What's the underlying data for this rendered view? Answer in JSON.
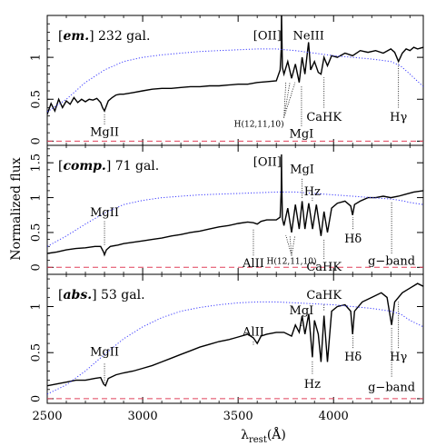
{
  "chart_data": {
    "type": "line",
    "layout": "three vertically stacked panels sharing the x axis",
    "xlabel_main": "λ",
    "xlabel_sub": "rest",
    "xlabel_unit": "(Å)",
    "ylabel": "Normalized flux",
    "xlim": [
      2500,
      4470
    ],
    "x_ticks": [
      2500,
      3000,
      3500,
      4000
    ],
    "colors": {
      "spectrum": "#000000",
      "template": "#3a3aff",
      "zero_line": "#e0405a"
    },
    "line_styles": {
      "template": "dotted",
      "zero_line": "dashed"
    },
    "panels": [
      {
        "id": "em",
        "label_type": "em.",
        "label_count": "232 gal.",
        "ylim": [
          -0.05,
          1.5
        ],
        "y_ticks": [
          0,
          0.5,
          1
        ],
        "y_tick_labels": [
          "0",
          "0.5",
          "1"
        ],
        "series": [
          {
            "role": "spectrum",
            "x": [
              2500,
              2520,
              2540,
              2560,
              2580,
              2600,
              2620,
              2640,
              2660,
              2680,
              2700,
              2720,
              2740,
              2760,
              2780,
              2790,
              2800,
              2810,
              2820,
              2840,
              2860,
              2880,
              2900,
              2950,
              3000,
              3050,
              3100,
              3150,
              3200,
              3250,
              3300,
              3350,
              3400,
              3450,
              3500,
              3550,
              3600,
              3650,
              3700,
              3720,
              3726,
              3727,
              3728,
              3732,
              3740,
              3760,
              3780,
              3800,
              3820,
              3835,
              3850,
              3869,
              3880,
              3900,
              3920,
              3934,
              3950,
              3968,
              3990,
              4020,
              4060,
              4100,
              4140,
              4180,
              4220,
              4260,
              4300,
              4320,
              4340,
              4360,
              4380,
              4400,
              4420,
              4440,
              4470
            ],
            "y": [
              0.32,
              0.45,
              0.36,
              0.5,
              0.4,
              0.48,
              0.44,
              0.52,
              0.46,
              0.5,
              0.47,
              0.5,
              0.49,
              0.51,
              0.46,
              0.4,
              0.36,
              0.42,
              0.48,
              0.52,
              0.55,
              0.56,
              0.56,
              0.58,
              0.6,
              0.62,
              0.63,
              0.63,
              0.64,
              0.65,
              0.65,
              0.66,
              0.66,
              0.67,
              0.68,
              0.68,
              0.7,
              0.71,
              0.72,
              0.85,
              1.1,
              1.58,
              1.4,
              0.88,
              0.8,
              0.95,
              0.75,
              0.92,
              0.7,
              1.0,
              0.8,
              1.18,
              0.85,
              0.95,
              0.82,
              0.8,
              1.0,
              0.9,
              1.02,
              1.0,
              1.05,
              1.02,
              1.08,
              1.06,
              1.08,
              1.05,
              1.1,
              1.06,
              0.95,
              1.05,
              1.1,
              1.08,
              1.12,
              1.1,
              1.12
            ]
          },
          {
            "role": "template",
            "x": [
              2500,
              2600,
              2700,
              2800,
              2900,
              3000,
              3100,
              3200,
              3300,
              3400,
              3500,
              3600,
              3700,
              3800,
              3900,
              4000,
              4100,
              4200,
              4300,
              4350,
              4400,
              4470
            ],
            "y": [
              0.35,
              0.5,
              0.7,
              0.85,
              0.95,
              1.0,
              1.03,
              1.05,
              1.07,
              1.08,
              1.09,
              1.1,
              1.1,
              1.08,
              1.05,
              1.02,
              1.0,
              0.98,
              0.95,
              0.9,
              0.8,
              0.65
            ]
          },
          {
            "role": "zero_line",
            "x": [
              2500,
              4470
            ],
            "y": [
              0,
              0
            ]
          }
        ],
        "annotations": [
          {
            "text": "[OII]",
            "x": 3727,
            "y_label": 1.25,
            "anchor": "end",
            "small": false,
            "has_line": false
          },
          {
            "text": "NeIII",
            "x": 3869,
            "y_label": 1.25,
            "anchor": "middle",
            "small": false,
            "has_line": false
          },
          {
            "text": "MgII",
            "x": 2800,
            "y_label": 0.1,
            "anchor": "middle",
            "small": false,
            "has_line": true,
            "line_from": 0.2,
            "line_to": 0.33
          },
          {
            "text": "H(12,11,10)",
            "x": 3740,
            "y_label": 0.2,
            "anchor": "end",
            "small": true,
            "has_line": true,
            "line_from": 0.28,
            "line_to": 0.7,
            "fan": [
              3750,
              3771,
              3798
            ]
          },
          {
            "text": "MgI",
            "x": 3832,
            "y_label": 0.08,
            "anchor": "middle",
            "small": false,
            "has_line": true,
            "line_from": 0.18,
            "line_to": 0.66
          },
          {
            "text": "CaHK",
            "x": 3950,
            "y_label": 0.28,
            "anchor": "middle",
            "small": false,
            "has_line": true,
            "line_from": 0.4,
            "line_to": 0.76
          },
          {
            "text": "Hγ",
            "x": 4340,
            "y_label": 0.28,
            "anchor": "middle",
            "small": false,
            "has_line": true,
            "line_from": 0.4,
            "line_to": 0.92
          }
        ]
      },
      {
        "id": "comp",
        "label_type": "comp.",
        "label_count": "71 gal.",
        "ylim": [
          -0.1,
          1.75
        ],
        "y_ticks": [
          0,
          0.5,
          1,
          1.5
        ],
        "y_tick_labels": [
          "0",
          "0.5",
          "1",
          "1.5"
        ],
        "series": [
          {
            "role": "spectrum",
            "x": [
              2500,
              2550,
              2600,
              2650,
              2700,
              2750,
              2780,
              2795,
              2800,
              2810,
              2830,
              2870,
              2900,
              2950,
              3000,
              3050,
              3100,
              3150,
              3200,
              3250,
              3300,
              3350,
              3400,
              3450,
              3500,
              3550,
              3580,
              3600,
              3620,
              3650,
              3700,
              3720,
              3726,
              3727,
              3728,
              3732,
              3740,
              3760,
              3780,
              3800,
              3820,
              3835,
              3850,
              3870,
              3890,
              3910,
              3934,
              3950,
              3968,
              3990,
              4020,
              4060,
              4090,
              4100,
              4110,
              4140,
              4180,
              4220,
              4260,
              4300,
              4340,
              4380,
              4420,
              4470
            ],
            "y": [
              0.2,
              0.22,
              0.25,
              0.27,
              0.28,
              0.3,
              0.3,
              0.22,
              0.18,
              0.25,
              0.3,
              0.32,
              0.34,
              0.36,
              0.38,
              0.4,
              0.42,
              0.45,
              0.47,
              0.5,
              0.52,
              0.55,
              0.58,
              0.6,
              0.63,
              0.65,
              0.64,
              0.62,
              0.66,
              0.68,
              0.68,
              0.72,
              1.1,
              1.62,
              1.3,
              0.7,
              0.6,
              0.85,
              0.5,
              0.9,
              0.55,
              0.95,
              0.55,
              0.92,
              0.55,
              0.9,
              0.45,
              0.8,
              0.5,
              0.85,
              0.92,
              0.95,
              0.88,
              0.75,
              0.9,
              0.95,
              1.0,
              1.0,
              1.02,
              1.0,
              1.02,
              1.05,
              1.08,
              1.1
            ]
          },
          {
            "role": "template",
            "x": [
              2500,
              2600,
              2700,
              2800,
              2900,
              3000,
              3100,
              3200,
              3300,
              3400,
              3500,
              3600,
              3700,
              3800,
              3900,
              4000,
              4100,
              4200,
              4300,
              4350,
              4400,
              4470
            ],
            "y": [
              0.3,
              0.45,
              0.62,
              0.78,
              0.9,
              0.96,
              1.0,
              1.02,
              1.04,
              1.05,
              1.06,
              1.07,
              1.08,
              1.08,
              1.06,
              1.04,
              1.02,
              1.0,
              0.98,
              0.96,
              0.93,
              0.9
            ]
          },
          {
            "role": "zero_line",
            "x": [
              2500,
              4470
            ],
            "y": [
              0,
              0
            ]
          }
        ],
        "annotations": [
          {
            "text": "[OII]",
            "x": 3727,
            "y_label": 1.5,
            "anchor": "end",
            "small": false,
            "has_line": false
          },
          {
            "text": "MgI",
            "x": 3835,
            "y_label": 1.4,
            "anchor": "middle",
            "small": false,
            "has_line": true,
            "line_from": 1.27,
            "line_to": 0.98
          },
          {
            "text": "Hz",
            "x": 3889,
            "y_label": 1.08,
            "anchor": "middle",
            "small": false,
            "has_line": true,
            "line_from": 1.0,
            "line_to": 0.95
          },
          {
            "text": "MgII",
            "x": 2800,
            "y_label": 0.78,
            "anchor": "middle",
            "small": false,
            "has_line": true,
            "line_from": 0.66,
            "line_to": 0.32
          },
          {
            "text": "Hδ",
            "x": 4102,
            "y_label": 0.4,
            "anchor": "middle",
            "small": false,
            "has_line": true,
            "line_from": 0.55,
            "line_to": 0.72
          },
          {
            "text": "g−band",
            "x": 4304,
            "y_label": 0.08,
            "anchor": "middle",
            "small": false,
            "has_line": true,
            "line_from": 0.2,
            "line_to": 0.95
          },
          {
            "text": "AlII",
            "x": 3580,
            "y_label": 0.05,
            "anchor": "middle",
            "small": false,
            "has_line": true,
            "line_from": 0.17,
            "line_to": 0.56
          },
          {
            "text": "H(12,11,10)",
            "x": 3780,
            "y_label": 0.08,
            "anchor": "middle",
            "small": true,
            "has_line": true,
            "line_from": 0.17,
            "line_to": 0.46,
            "fan": [
              3750,
              3771,
              3798
            ]
          },
          {
            "text": "CaHK",
            "x": 3950,
            "y_label": 0.0,
            "anchor": "middle",
            "small": false,
            "has_line": true,
            "line_from": 0.12,
            "line_to": 0.4
          }
        ]
      },
      {
        "id": "abs",
        "label_type": "abs.",
        "label_count": "53 gal.",
        "ylim": [
          -0.05,
          1.35
        ],
        "y_ticks": [
          0,
          0.5,
          1
        ],
        "y_tick_labels": [
          "0",
          "0.5",
          "1"
        ],
        "series": [
          {
            "role": "spectrum",
            "x": [
              2500,
              2550,
              2600,
              2650,
              2700,
              2750,
              2780,
              2795,
              2805,
              2820,
              2860,
              2900,
              2950,
              3000,
              3050,
              3100,
              3150,
              3200,
              3250,
              3300,
              3350,
              3400,
              3450,
              3500,
              3550,
              3580,
              3600,
              3620,
              3650,
              3700,
              3740,
              3780,
              3800,
              3820,
              3835,
              3850,
              3870,
              3889,
              3900,
              3920,
              3934,
              3950,
              3968,
              3990,
              4020,
              4060,
              4090,
              4100,
              4110,
              4150,
              4200,
              4250,
              4280,
              4304,
              4320,
              4360,
              4400,
              4440,
              4470
            ],
            "y": [
              0.14,
              0.16,
              0.18,
              0.2,
              0.2,
              0.22,
              0.23,
              0.16,
              0.14,
              0.22,
              0.26,
              0.28,
              0.3,
              0.33,
              0.36,
              0.4,
              0.44,
              0.48,
              0.52,
              0.56,
              0.59,
              0.62,
              0.64,
              0.67,
              0.7,
              0.66,
              0.6,
              0.68,
              0.7,
              0.72,
              0.72,
              0.68,
              0.8,
              0.72,
              0.9,
              0.7,
              0.92,
              0.45,
              0.85,
              0.7,
              0.4,
              0.9,
              0.4,
              0.95,
              1.0,
              1.02,
              0.95,
              0.7,
              0.95,
              1.05,
              1.1,
              1.15,
              1.1,
              0.8,
              1.05,
              1.15,
              1.2,
              1.25,
              1.22
            ]
          },
          {
            "role": "template",
            "x": [
              2500,
              2600,
              2700,
              2800,
              2900,
              3000,
              3100,
              3200,
              3300,
              3400,
              3500,
              3600,
              3700,
              3800,
              3900,
              4000,
              4100,
              4200,
              4300,
              4350,
              4400,
              4470
            ],
            "y": [
              0.05,
              0.15,
              0.3,
              0.48,
              0.65,
              0.78,
              0.88,
              0.95,
              0.99,
              1.02,
              1.04,
              1.05,
              1.05,
              1.04,
              1.03,
              1.02,
              1.0,
              0.98,
              0.95,
              0.92,
              0.85,
              0.78
            ]
          },
          {
            "role": "zero_line",
            "x": [
              2500,
              4470
            ],
            "y": [
              0,
              0
            ]
          }
        ],
        "annotations": [
          {
            "text": "CaHK",
            "x": 3950,
            "y_label": 1.12,
            "anchor": "middle",
            "small": false,
            "has_line": true,
            "line_from": 1.02,
            "line_to": 0.95
          },
          {
            "text": "MgI",
            "x": 3832,
            "y_label": 0.95,
            "anchor": "middle",
            "small": false,
            "has_line": true,
            "line_from": 0.85,
            "line_to": 0.78
          },
          {
            "text": "AlII",
            "x": 3580,
            "y_label": 0.72,
            "anchor": "middle",
            "small": false,
            "has_line": true,
            "line_from": 0.62,
            "line_to": 0.58
          },
          {
            "text": "MgII",
            "x": 2800,
            "y_label": 0.5,
            "anchor": "middle",
            "small": false,
            "has_line": true,
            "line_from": 0.38,
            "line_to": 0.17
          },
          {
            "text": "Hδ",
            "x": 4102,
            "y_label": 0.45,
            "anchor": "middle",
            "small": false,
            "has_line": true,
            "line_from": 0.55,
            "line_to": 0.68
          },
          {
            "text": "Hγ",
            "x": 4340,
            "y_label": 0.45,
            "anchor": "middle",
            "small": false,
            "has_line": true,
            "line_from": 0.55,
            "line_to": 1.05
          },
          {
            "text": "Hz",
            "x": 3889,
            "y_label": 0.15,
            "anchor": "middle",
            "small": false,
            "has_line": true,
            "line_from": 0.27,
            "line_to": 0.42
          },
          {
            "text": "g−band",
            "x": 4304,
            "y_label": 0.12,
            "anchor": "middle",
            "small": false,
            "has_line": true,
            "line_from": 0.24,
            "line_to": 0.78
          }
        ]
      }
    ]
  }
}
